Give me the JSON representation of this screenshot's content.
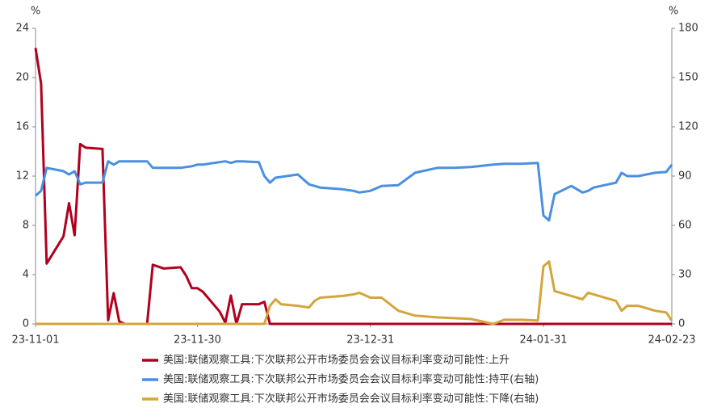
{
  "chart_data": {
    "type": "line",
    "ylabel": "%",
    "y2label": "%",
    "x": [
      "23-11-01",
      "23-11-02",
      "23-11-03",
      "23-11-06",
      "23-11-07",
      "23-11-08",
      "23-11-09",
      "23-11-10",
      "23-11-13",
      "23-11-14",
      "23-11-15",
      "23-11-16",
      "23-11-17",
      "23-11-21",
      "23-11-22",
      "23-11-24",
      "23-11-27",
      "23-11-28",
      "23-11-29",
      "23-11-30",
      "23-12-01",
      "23-12-04",
      "23-12-05",
      "23-12-06",
      "23-12-07",
      "23-12-08",
      "23-12-11",
      "23-12-12",
      "23-12-13",
      "23-12-14",
      "23-12-15",
      "23-12-18",
      "23-12-20",
      "23-12-21",
      "23-12-22",
      "23-12-26",
      "23-12-28",
      "23-12-29",
      "23-12-31",
      "24-01-02",
      "24-01-05",
      "24-01-08",
      "24-01-12",
      "24-01-15",
      "24-01-18",
      "24-01-22",
      "24-01-24",
      "24-01-27",
      "24-01-30",
      "24-01-31",
      "24-02-01",
      "24-02-02",
      "24-02-05",
      "24-02-07",
      "24-02-08",
      "24-02-09",
      "24-02-13",
      "24-02-14",
      "24-02-15",
      "24-02-17",
      "24-02-20",
      "24-02-22",
      "24-02-23"
    ],
    "series": [
      {
        "name": "美国:联储观察工具:下次联邦公开市场委员会会议目标利率变动可能性:上升",
        "color": "#b0001e",
        "values": [
          22.4,
          19.5,
          4.9,
          7.1,
          9.8,
          7.2,
          14.6,
          14.3,
          14.2,
          0.3,
          2.5,
          0.2,
          0,
          0,
          4.8,
          4.5,
          4.6,
          3.9,
          2.9,
          2.9,
          2.6,
          1.0,
          0.1,
          2.3,
          0,
          1.6,
          1.6,
          1.8,
          0,
          0,
          0,
          0,
          0,
          0,
          0,
          0,
          0,
          0,
          0,
          0,
          0,
          0,
          0,
          0,
          0,
          0,
          0,
          0,
          0,
          0,
          0,
          0,
          0,
          0,
          0,
          0,
          0,
          0,
          0,
          0,
          0,
          0,
          0
        ]
      },
      {
        "name": "美国:联储观察工具:下次联邦公开市场委员会会议目标利率变动可能性:持平(右轴)",
        "color": "#4a90e2",
        "axis": "y2",
        "values": [
          78,
          81,
          95,
          93,
          91,
          93,
          85,
          86,
          86,
          99,
          97,
          99,
          99,
          99,
          95,
          95,
          95,
          95.5,
          96,
          97,
          97,
          98.5,
          99,
          98,
          99,
          99,
          98.5,
          90,
          86,
          89,
          89.5,
          91,
          85,
          84,
          83,
          82,
          81,
          80,
          81,
          84,
          84.5,
          92,
          95,
          95,
          95.5,
          97,
          97.5,
          97.5,
          98,
          66,
          63,
          79,
          84,
          80,
          81,
          83,
          86,
          92,
          90,
          90,
          92,
          92.5,
          97
        ]
      },
      {
        "name": "美国:联储观察工具:下次联邦公开市场委员会会议目标利率变动可能性:下降(右轴)",
        "color": "#d4a53c",
        "axis": "y2",
        "values": [
          0,
          0,
          0,
          0,
          0,
          0,
          0,
          0,
          0,
          0,
          0,
          0,
          0,
          0,
          0,
          0,
          0,
          0,
          0,
          0,
          0,
          0,
          0,
          0,
          0,
          0,
          0,
          0,
          11,
          15,
          12,
          11,
          10,
          14,
          16,
          17,
          18,
          19,
          16,
          16,
          8,
          5,
          4,
          3.5,
          3,
          0,
          2.5,
          2.5,
          2,
          35,
          38,
          20,
          17,
          15,
          19,
          18,
          14,
          8,
          11,
          11,
          8,
          7,
          2
        ]
      }
    ],
    "xlim": [
      "23-11-01",
      "24-02-23"
    ],
    "xticks": [
      "23-11-01",
      "23-11-30",
      "23-12-31",
      "24-01-31",
      "24-02-23"
    ],
    "ylim": [
      0,
      24
    ],
    "yticks": [
      0,
      4,
      8,
      12,
      16,
      20,
      24
    ],
    "y2lim": [
      0,
      180
    ],
    "y2ticks": [
      0,
      30,
      60,
      90,
      120,
      150,
      180
    ],
    "grid": false
  }
}
